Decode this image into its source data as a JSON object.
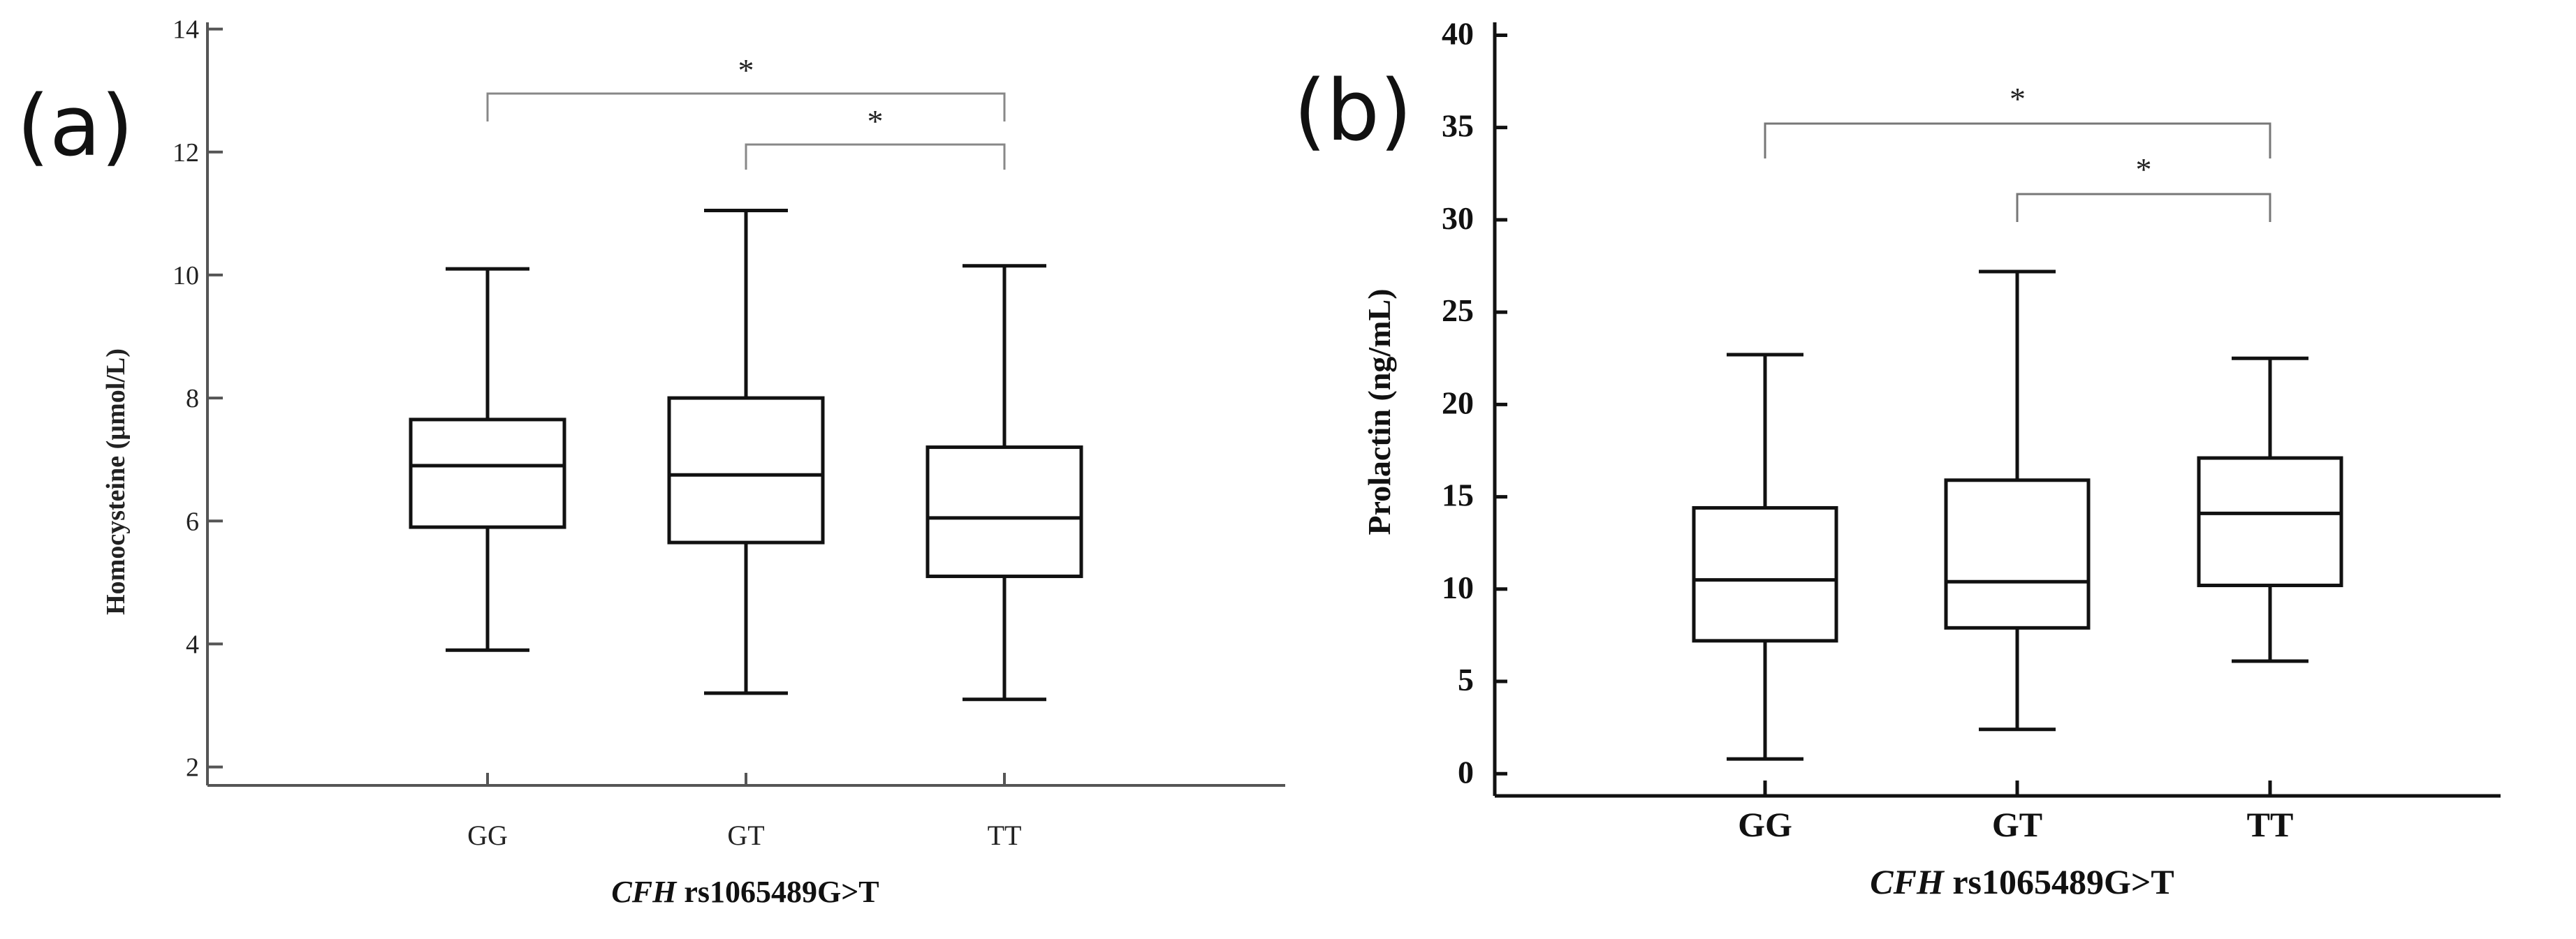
{
  "chart_data": [
    {
      "panel": "(a)",
      "type": "box",
      "ylabel": "Homocysteine (µmol/L)",
      "xlabel_italic": "CFH",
      "xlabel_rest": " rs1065489G>T",
      "ylim": [
        1.7,
        14.2
      ],
      "yticks": [
        2,
        4,
        6,
        8,
        10,
        12,
        14
      ],
      "ytick_labels": [
        "2",
        "4",
        "6",
        "8",
        "10",
        "12",
        "14"
      ],
      "categories": [
        "GG",
        "GT",
        "TT"
      ],
      "boxes": [
        {
          "category": "GG",
          "min": 3.9,
          "q1": 5.9,
          "median": 6.9,
          "q3": 7.65,
          "max": 10.1
        },
        {
          "category": "GT",
          "min": 3.2,
          "q1": 5.65,
          "median": 6.75,
          "q3": 8.0,
          "max": 11.05
        },
        {
          "category": "TT",
          "min": 3.1,
          "q1": 5.1,
          "median": 6.05,
          "q3": 7.2,
          "max": 10.15
        }
      ],
      "significance": [
        {
          "from": "GG",
          "to": "TT",
          "label": "*"
        },
        {
          "from": "GT",
          "to": "TT",
          "label": "*"
        }
      ]
    },
    {
      "panel": "(b)",
      "type": "box",
      "ylabel": "Prolactin (ng/mL)",
      "xlabel_italic": "CFH",
      "xlabel_rest": " rs1065489G>T",
      "ylim": [
        -1.2,
        41
      ],
      "yticks": [
        0,
        5,
        10,
        15,
        20,
        25,
        30,
        35,
        40
      ],
      "ytick_labels": [
        "0",
        "5",
        "10",
        "15",
        "20",
        "25",
        "30",
        "35",
        "40"
      ],
      "categories": [
        "GG",
        "GT",
        "TT"
      ],
      "boxes": [
        {
          "category": "GG",
          "min": 0.8,
          "q1": 7.2,
          "median": 10.5,
          "q3": 14.4,
          "max": 22.7
        },
        {
          "category": "GT",
          "min": 2.4,
          "q1": 7.9,
          "median": 10.4,
          "q3": 15.9,
          "max": 27.2
        },
        {
          "category": "TT",
          "min": 6.1,
          "q1": 10.2,
          "median": 14.1,
          "q3": 17.1,
          "max": 22.5
        }
      ],
      "significance": [
        {
          "from": "GG",
          "to": "TT",
          "label": "*"
        },
        {
          "from": "GT",
          "to": "TT",
          "label": "*"
        }
      ]
    }
  ]
}
